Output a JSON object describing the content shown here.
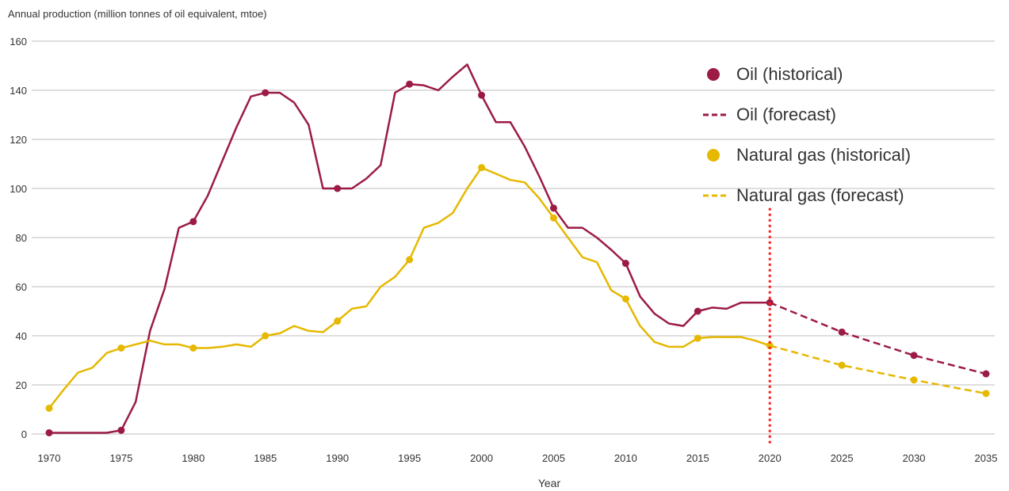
{
  "chart_data": {
    "type": "line",
    "title": "Annual production (million tonnes of oil equivalent, mtoe)",
    "xlabel": "Year",
    "ylabel": "",
    "xlim": [
      1970,
      2035
    ],
    "ylim": [
      0,
      160
    ],
    "xticks": [
      1970,
      1975,
      1980,
      1985,
      1990,
      1995,
      2000,
      2005,
      2010,
      2015,
      2020,
      2025,
      2030,
      2035
    ],
    "yticks": [
      0,
      20,
      40,
      60,
      80,
      100,
      120,
      140,
      160
    ],
    "grid": "horizontal",
    "legend_position": "top-right",
    "vertical_marker_x": 2020,
    "series": [
      {
        "name": "Oil (historical)",
        "color": "#9b1b45",
        "style": "solid",
        "x": [
          1970,
          1971,
          1972,
          1973,
          1974,
          1975,
          1976,
          1977,
          1978,
          1979,
          1980,
          1981,
          1982,
          1983,
          1984,
          1985,
          1986,
          1987,
          1988,
          1989,
          1990,
          1991,
          1992,
          1993,
          1994,
          1995,
          1996,
          1997,
          1998,
          1999,
          2000,
          2001,
          2002,
          2003,
          2004,
          2005,
          2006,
          2007,
          2008,
          2009,
          2010,
          2011,
          2012,
          2013,
          2014,
          2015,
          2016,
          2017,
          2018,
          2019,
          2020
        ],
        "values": [
          0.5,
          0.5,
          0.5,
          0.5,
          0.5,
          1.5,
          13,
          42,
          59,
          84,
          86.5,
          97,
          111,
          125,
          137.5,
          139,
          139,
          135,
          126,
          100,
          100,
          100,
          104,
          109.5,
          139,
          142.5,
          142,
          140,
          145.5,
          150.5,
          138,
          127,
          127,
          117,
          105,
          92,
          84,
          84,
          80,
          75,
          69.5,
          56,
          49,
          45,
          44,
          50,
          51.5,
          51,
          53.5,
          53.5,
          53.5
        ],
        "markers": [
          1970,
          1975,
          1980,
          1985,
          1990,
          1995,
          2000,
          2005,
          2010,
          2015,
          2020
        ]
      },
      {
        "name": "Oil (forecast)",
        "color": "#9b1b45",
        "style": "dashed",
        "x": [
          2020,
          2025,
          2030,
          2035
        ],
        "values": [
          53.5,
          41.5,
          32,
          24.5
        ],
        "markers": [
          2025,
          2030,
          2035
        ]
      },
      {
        "name": "Natural gas (historical)",
        "color": "#e6b800",
        "style": "solid",
        "x": [
          1970,
          1971,
          1972,
          1973,
          1974,
          1975,
          1976,
          1977,
          1978,
          1979,
          1980,
          1981,
          1982,
          1983,
          1984,
          1985,
          1986,
          1987,
          1988,
          1989,
          1990,
          1991,
          1992,
          1993,
          1994,
          1995,
          1996,
          1997,
          1998,
          1999,
          2000,
          2001,
          2002,
          2003,
          2004,
          2005,
          2006,
          2007,
          2008,
          2009,
          2010,
          2011,
          2012,
          2013,
          2014,
          2015,
          2016,
          2017,
          2018,
          2019,
          2020
        ],
        "values": [
          10.5,
          18,
          25,
          27,
          33,
          35,
          36.5,
          38,
          36.5,
          36.5,
          35,
          35,
          35.5,
          36.5,
          35.5,
          40,
          41,
          44,
          42,
          41.5,
          46,
          51,
          52,
          60,
          64,
          71,
          84,
          86,
          90,
          100,
          108.5,
          106,
          103.5,
          102.5,
          96,
          88,
          80,
          72,
          70,
          58.5,
          55,
          44,
          37.5,
          35.5,
          35.5,
          39,
          39.5,
          39.5,
          39.5,
          38,
          36
        ],
        "markers": [
          1970,
          1975,
          1980,
          1985,
          1990,
          1995,
          2000,
          2005,
          2010,
          2015,
          2020
        ]
      },
      {
        "name": "Natural gas (forecast)",
        "color": "#e6b800",
        "style": "dashed",
        "x": [
          2020,
          2025,
          2030,
          2035
        ],
        "values": [
          36,
          28,
          22,
          16.5
        ],
        "markers": [
          2025,
          2030,
          2035
        ]
      }
    ],
    "marker_line_color": "#ff1a1a",
    "grid_color": "#bdbdbd"
  }
}
